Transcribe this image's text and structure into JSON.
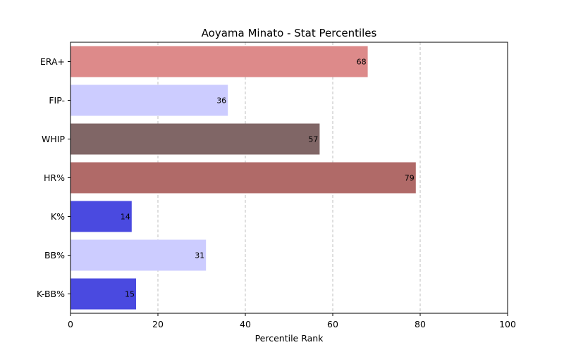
{
  "chart_data": {
    "type": "bar",
    "orientation": "horizontal",
    "title": "Aoyama Minato - Stat Percentiles",
    "xlabel": "Percentile Rank",
    "ylabel": "",
    "xlim": [
      0,
      100
    ],
    "xticks": [
      0,
      20,
      40,
      60,
      80,
      100
    ],
    "grid": "vertical dashed",
    "categories": [
      "ERA+",
      "FIP-",
      "WHIP",
      "HR%",
      "K%",
      "BB%",
      "K-BB%"
    ],
    "values": [
      68,
      36,
      57,
      79,
      14,
      31,
      15
    ],
    "colors": [
      "#dd8a8a",
      "#ccccff",
      "#806666",
      "#b06a68",
      "#4a4ae0",
      "#ccccff",
      "#4a4ae0"
    ]
  }
}
